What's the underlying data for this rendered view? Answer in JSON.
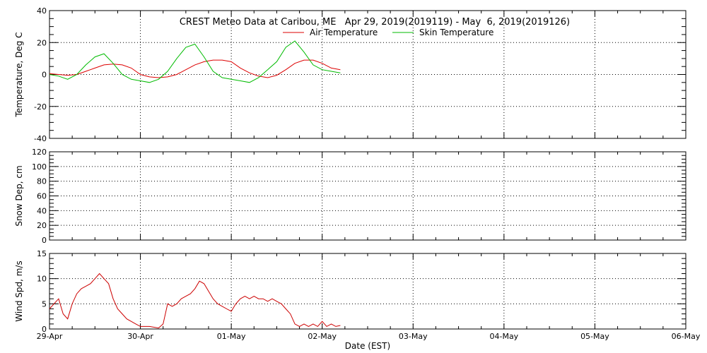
{
  "title": "CREST Meteo Data at Caribou, ME   Apr 29, 2019(2019119) - May  6, 2019(2019126)",
  "colors": {
    "air": "#dd0000",
    "skin": "#00bb00",
    "wind": "#cc0000",
    "axis": "#000000"
  },
  "chart_data": [
    {
      "type": "line",
      "ylabel": "Temperature, Deg C",
      "ylim": [
        -40,
        40
      ],
      "yticks": [
        -40,
        -20,
        0,
        20,
        40
      ],
      "ytick_labels": [
        "-40",
        "-20",
        "0",
        "20",
        "40"
      ],
      "xlim": [
        0,
        7
      ],
      "grid": true,
      "legend": "top-center",
      "series": [
        {
          "name": "Air Temperature",
          "color": "#dd0000",
          "x": [
            0,
            0.1,
            0.2,
            0.3,
            0.4,
            0.5,
            0.6,
            0.7,
            0.8,
            0.9,
            1.0,
            1.1,
            1.2,
            1.3,
            1.4,
            1.5,
            1.6,
            1.7,
            1.8,
            1.9,
            2.0,
            2.1,
            2.2,
            2.3,
            2.4,
            2.5,
            2.6,
            2.7,
            2.8,
            2.9,
            3.0,
            3.1,
            3.2
          ],
          "y": [
            0.5,
            0,
            -0.5,
            0,
            2,
            4,
            6,
            6.5,
            6,
            4,
            0,
            -1.5,
            -2,
            -1.5,
            0,
            3,
            6,
            8,
            9,
            9,
            8,
            4,
            1,
            -1,
            -2,
            -0.5,
            3,
            7,
            9,
            9,
            7,
            4,
            3
          ]
        },
        {
          "name": "Skin Temperature",
          "color": "#00bb00",
          "x": [
            0,
            0.1,
            0.2,
            0.3,
            0.4,
            0.5,
            0.6,
            0.7,
            0.8,
            0.9,
            1.0,
            1.1,
            1.2,
            1.3,
            1.4,
            1.5,
            1.6,
            1.7,
            1.8,
            1.9,
            2.0,
            2.1,
            2.2,
            2.3,
            2.4,
            2.5,
            2.6,
            2.7,
            2.8,
            2.9,
            3.0,
            3.1,
            3.2
          ],
          "y": [
            0,
            -1,
            -3,
            0,
            6,
            11,
            13,
            7,
            0,
            -3,
            -4,
            -5,
            -3,
            2,
            10,
            17,
            19,
            11,
            2,
            -2,
            -3,
            -4,
            -5,
            -2,
            3,
            8,
            17,
            21,
            14,
            6,
            3,
            2,
            1
          ]
        }
      ]
    },
    {
      "type": "line",
      "ylabel": "Snow Dep, cm",
      "ylim": [
        0,
        120
      ],
      "yticks": [
        0,
        20,
        40,
        60,
        80,
        100,
        120
      ],
      "ytick_labels": [
        "0",
        "20",
        "40",
        "60",
        "80",
        "100",
        "120"
      ],
      "xlim": [
        0,
        7
      ],
      "grid": true,
      "series": []
    },
    {
      "type": "line",
      "ylabel": "Wind Spd, m/s",
      "xlabel": "Date (EST)",
      "ylim": [
        0,
        15
      ],
      "yticks": [
        0,
        5,
        10,
        15
      ],
      "ytick_labels": [
        "0",
        "5",
        "10",
        "15"
      ],
      "xlim": [
        0,
        7
      ],
      "xticks": [
        0,
        1,
        2,
        3,
        4,
        5,
        6,
        7
      ],
      "xtick_labels": [
        "29-Apr",
        "30-Apr",
        "01-May",
        "02-May",
        "03-May",
        "04-May",
        "05-May",
        "06-May"
      ],
      "grid": true,
      "series": [
        {
          "color": "#cc0000",
          "x": [
            0,
            0.05,
            0.1,
            0.15,
            0.2,
            0.25,
            0.3,
            0.35,
            0.4,
            0.45,
            0.5,
            0.55,
            0.6,
            0.65,
            0.7,
            0.75,
            0.8,
            0.85,
            0.9,
            0.95,
            1.0,
            1.1,
            1.2,
            1.25,
            1.3,
            1.35,
            1.4,
            1.45,
            1.5,
            1.55,
            1.6,
            1.65,
            1.7,
            1.75,
            1.8,
            1.85,
            1.9,
            1.95,
            2.0,
            2.05,
            2.1,
            2.15,
            2.2,
            2.25,
            2.3,
            2.35,
            2.4,
            2.45,
            2.5,
            2.55,
            2.6,
            2.65,
            2.7,
            2.75,
            2.8,
            2.85,
            2.9,
            2.95,
            3.0,
            3.05,
            3.1,
            3.15,
            3.2
          ],
          "y": [
            4,
            5,
            6,
            3,
            2,
            5,
            7,
            8,
            8.5,
            9,
            10,
            11,
            10,
            9,
            6,
            4,
            3,
            2,
            1.5,
            1,
            0.5,
            0.5,
            0.2,
            1,
            5,
            4.5,
            5,
            6,
            6.5,
            7,
            8,
            9.5,
            9,
            7.5,
            6,
            5,
            4.5,
            4,
            3.5,
            5,
            6,
            6.5,
            6,
            6.5,
            6,
            6,
            5.5,
            6,
            5.5,
            5,
            4,
            3,
            1,
            0.5,
            1,
            0.5,
            1,
            0.5,
            1.5,
            0.5,
            1,
            0.5,
            0.7
          ]
        }
      ]
    }
  ]
}
